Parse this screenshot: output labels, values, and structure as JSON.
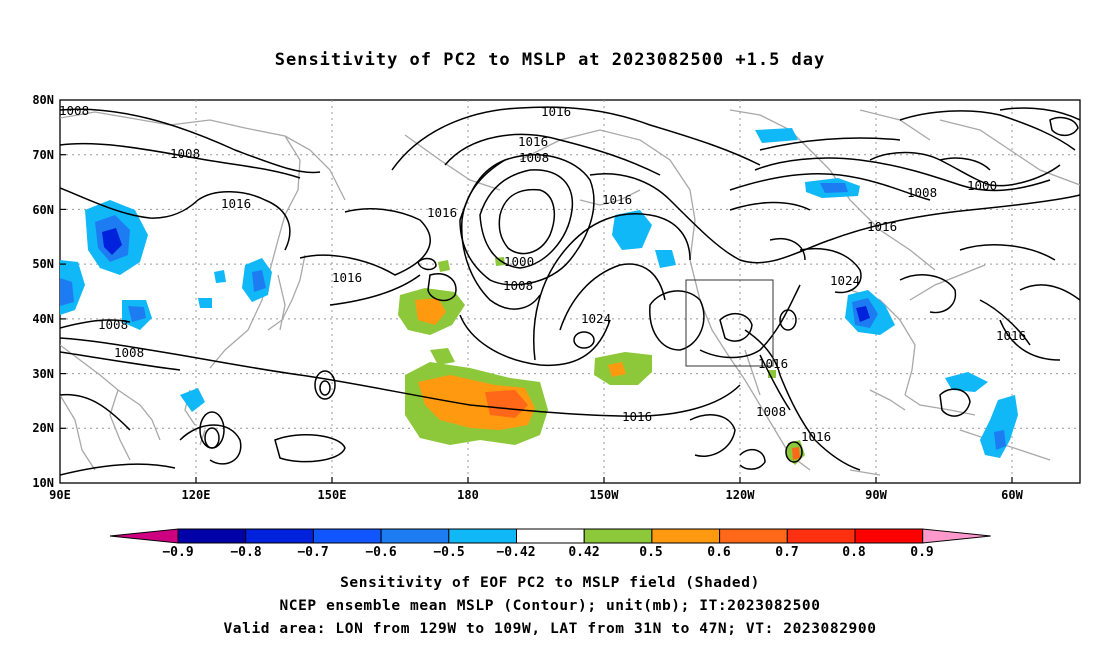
{
  "title": "Sensitivity of PC2 to MSLP at 2023082500 +1.5 day",
  "map": {
    "lat_ticks": [
      "80N",
      "70N",
      "60N",
      "50N",
      "40N",
      "30N",
      "20N",
      "10N"
    ],
    "lon_ticks": [
      "90E",
      "120E",
      "150E",
      "180",
      "150W",
      "120W",
      "90W",
      "60W"
    ],
    "contour_labels": [
      "1008",
      "1016",
      "1008",
      "1016",
      "1016",
      "1016",
      "1008",
      "1016",
      "1000",
      "1008",
      "1024",
      "1016",
      "1008",
      "1016",
      "1016",
      "1008",
      "1016",
      "1024",
      "1016",
      "1008",
      "1008",
      "1000",
      "1016"
    ],
    "valid_area_box": {
      "lon_from": "129W",
      "lon_to": "109W",
      "lat_from": "31N",
      "lat_to": "47N"
    }
  },
  "colorbar": {
    "labels": [
      "−0.9",
      "−0.8",
      "−0.7",
      "−0.6",
      "−0.5",
      "−0.42",
      "0.42",
      "0.5",
      "0.6",
      "0.7",
      "0.8",
      "0.9"
    ],
    "colors": [
      "#cc0080",
      "#0000a8",
      "#0022dd",
      "#1155ff",
      "#1e7cf2",
      "#10b8f8",
      "#ffffff",
      "#8cc83a",
      "#ff9a10",
      "#ff6818",
      "#ff3010",
      "#ff0000",
      "#ff99cc"
    ]
  },
  "captions": {
    "line1": "Sensitivity of EOF PC2 to MSLP field (Shaded)",
    "line2": "NCEP ensemble mean MSLP (Contour); unit(mb); IT:2023082500",
    "line3": "Valid area: LON from 129W to 109W, LAT from 31N to 47N; VT: 2023082900"
  }
}
